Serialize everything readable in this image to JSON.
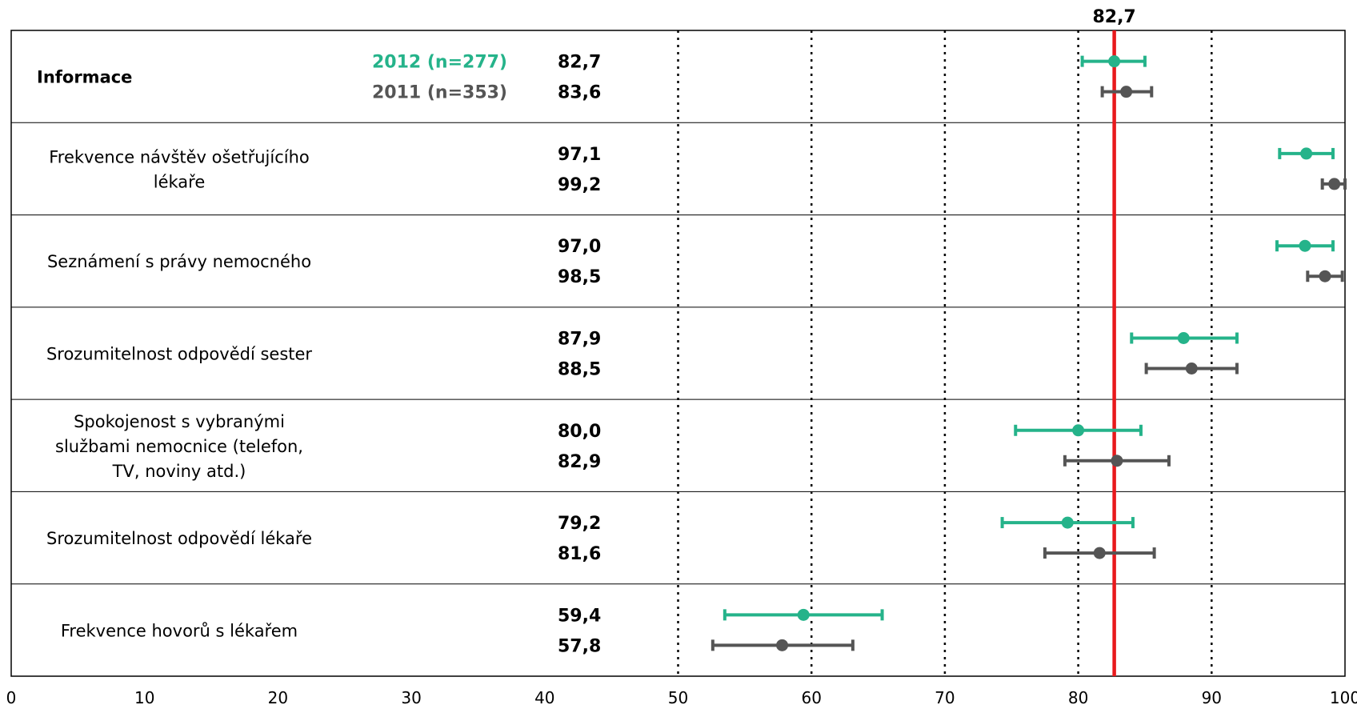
{
  "chart_data": {
    "type": "scatter",
    "subtype": "dot-plot-with-error-bars",
    "xlim": [
      0,
      100
    ],
    "x_ticks": [
      "0",
      "10",
      "20",
      "30",
      "40",
      "50",
      "60",
      "70",
      "80",
      "90",
      "100"
    ],
    "dotted_gridlines_at": [
      50,
      60,
      70,
      80,
      90
    ],
    "reference_line": {
      "value": 82.7,
      "label": "82,7",
      "color": "#e8191c"
    },
    "series": [
      {
        "name": "2012 (n=277)",
        "color": "#25b38a"
      },
      {
        "name": "2011 (n=353)",
        "color": "#555555"
      }
    ],
    "rows": [
      {
        "label": "Informace",
        "bold": true,
        "values": [
          82.7,
          83.6
        ],
        "value_labels": [
          "82,7",
          "83,6"
        ],
        "ci": [
          [
            80.3,
            85.0
          ],
          [
            81.8,
            85.5
          ]
        ]
      },
      {
        "label": "Frekvence návštěv ošetřujícího lékaře",
        "values": [
          97.1,
          99.2
        ],
        "value_labels": [
          "97,1",
          "99,2"
        ],
        "ci": [
          [
            95.1,
            99.1
          ],
          [
            98.3,
            100.0
          ]
        ]
      },
      {
        "label": "Seznámení s právy nemocného",
        "values": [
          97.0,
          98.5
        ],
        "value_labels": [
          "97,0",
          "98,5"
        ],
        "ci": [
          [
            94.9,
            99.1
          ],
          [
            97.2,
            99.8
          ]
        ]
      },
      {
        "label": "Srozumitelnost odpovědí sester",
        "values": [
          87.9,
          88.5
        ],
        "value_labels": [
          "87,9",
          "88,5"
        ],
        "ci": [
          [
            84.0,
            91.9
          ],
          [
            85.1,
            91.9
          ]
        ]
      },
      {
        "label": "Spokojenost s vybranými službami nemocnice (telefon, TV, noviny atd.)",
        "values": [
          80.0,
          82.9
        ],
        "value_labels": [
          "80,0",
          "82,9"
        ],
        "ci": [
          [
            75.3,
            84.7
          ],
          [
            79.0,
            86.8
          ]
        ]
      },
      {
        "label": "Srozumitelnost odpovědí lékaře",
        "values": [
          79.2,
          81.6
        ],
        "value_labels": [
          "79,2",
          "81,6"
        ],
        "ci": [
          [
            74.3,
            84.1
          ],
          [
            77.5,
            85.7
          ]
        ]
      },
      {
        "label": "Frekvence hovorů s lékařem",
        "values": [
          59.4,
          57.8
        ],
        "value_labels": [
          "59,4",
          "57,8"
        ],
        "ci": [
          [
            53.5,
            65.3
          ],
          [
            52.6,
            63.1
          ]
        ]
      }
    ]
  }
}
